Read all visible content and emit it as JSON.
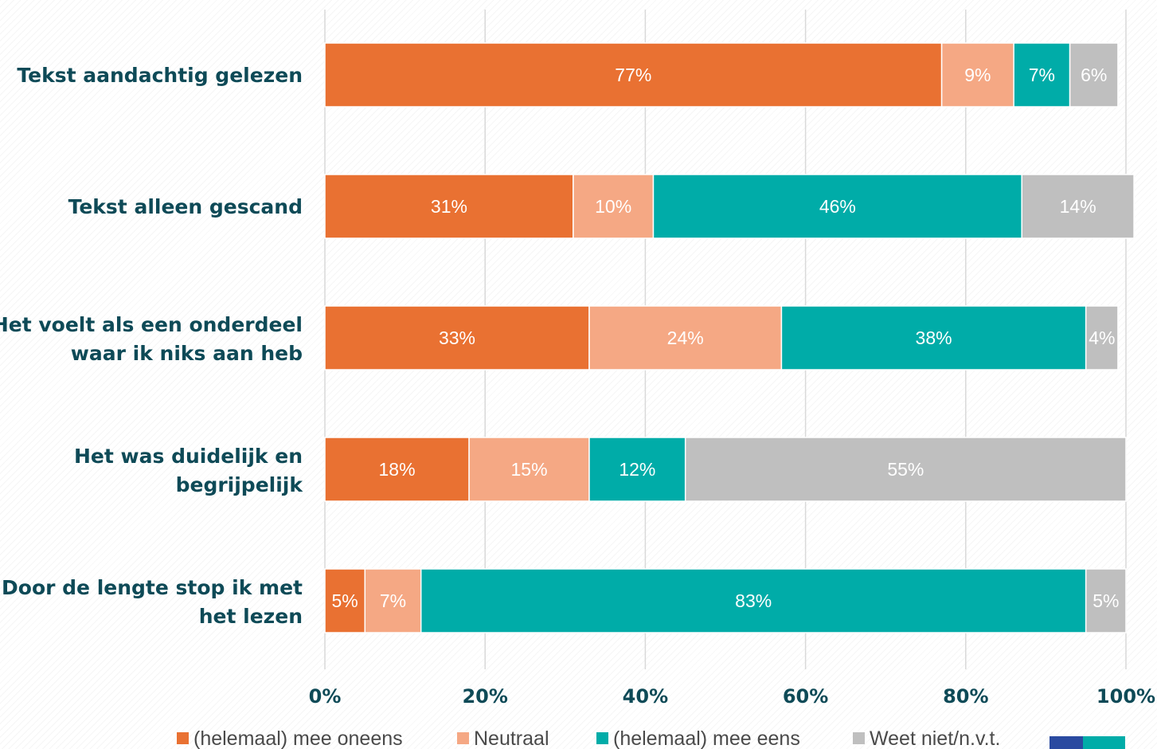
{
  "chart_data": {
    "type": "bar",
    "orientation": "horizontal",
    "stacked": true,
    "percent_stacked": true,
    "categories": [
      [
        "Tekst aandachtig gelezen"
      ],
      [
        "Tekst alleen gescand"
      ],
      [
        "Het voelt als een onderdeel",
        "waar ik niks aan heb"
      ],
      [
        "Het was duidelijk en",
        "begrijpelijk"
      ],
      [
        "Door de lengte  stop ik met",
        "het lezen"
      ]
    ],
    "series": [
      {
        "name": "(helemaal) mee oneens",
        "color": "#e97132",
        "values": [
          77,
          31,
          33,
          18,
          5
        ],
        "labels": [
          "77%",
          "31%",
          "33%",
          "18%",
          "5%"
        ]
      },
      {
        "name": "Neutraal",
        "color": "#f5a884",
        "values": [
          9,
          10,
          24,
          15,
          7
        ],
        "labels": [
          "9%",
          "10%",
          "24%",
          "15%",
          "7%"
        ]
      },
      {
        "name": "(helemaal) mee eens",
        "color": "#00aca8",
        "values": [
          7,
          46,
          38,
          12,
          83
        ],
        "labels": [
          "7%",
          "46%",
          "38%",
          "12%",
          "83%"
        ]
      },
      {
        "name": "Weet niet/n.v.t.",
        "color": "#bfbfbf",
        "values": [
          6,
          14,
          4,
          55,
          5
        ],
        "labels": [
          "6%",
          "14%",
          "4%",
          "55%",
          "5%"
        ]
      }
    ],
    "xlim": [
      0,
      100
    ],
    "xticks": [
      "0%",
      "20%",
      "40%",
      "60%",
      "80%",
      "100%"
    ],
    "grid": true,
    "legend": "bottom",
    "text_color": "#0e4a57"
  }
}
